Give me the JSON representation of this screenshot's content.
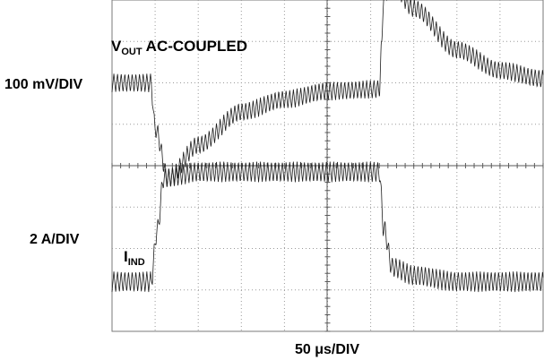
{
  "chart_data": {
    "type": "line",
    "title": "",
    "xlabel": "50 μs/DIV",
    "x_divisions": 10,
    "y_divisions": 8,
    "grid": true,
    "channels": [
      {
        "name": "V_OUT AC-COUPLED",
        "name_main": "V",
        "name_sub": "OUT",
        "name_rest": "AC-COUPLED",
        "scale_label": "100 mV/DIV",
        "units": "mV",
        "baseline_div": 2.0,
        "x_div": [
          0,
          0.5,
          0.9,
          1.0,
          1.3,
          2.0,
          3.0,
          4.0,
          5.0,
          6.2,
          6.25,
          6.3,
          6.5,
          7.0,
          8.0,
          9.0,
          10.0
        ],
        "y_mV": [
          0,
          0,
          0,
          -110,
          -230,
          -150,
          -70,
          -40,
          -20,
          -15,
          80,
          210,
          240,
          180,
          80,
          30,
          10
        ],
        "ripple_mVpp": 45
      },
      {
        "name": "I_IND",
        "name_main": "I",
        "name_sub": "IND",
        "scale_label": "2 A/DIV",
        "units": "A",
        "baseline_div": 6.8,
        "x_div": [
          0,
          0.5,
          0.9,
          1.05,
          1.2,
          2.0,
          4.0,
          6.2,
          6.3,
          6.5,
          7.0,
          8.0,
          10.0
        ],
        "y_A": [
          0,
          0,
          0,
          2.5,
          5.0,
          5.3,
          5.3,
          5.3,
          2.6,
          0.7,
          0.3,
          0.0,
          0.0
        ],
        "ripple_App": 1.0
      }
    ]
  }
}
